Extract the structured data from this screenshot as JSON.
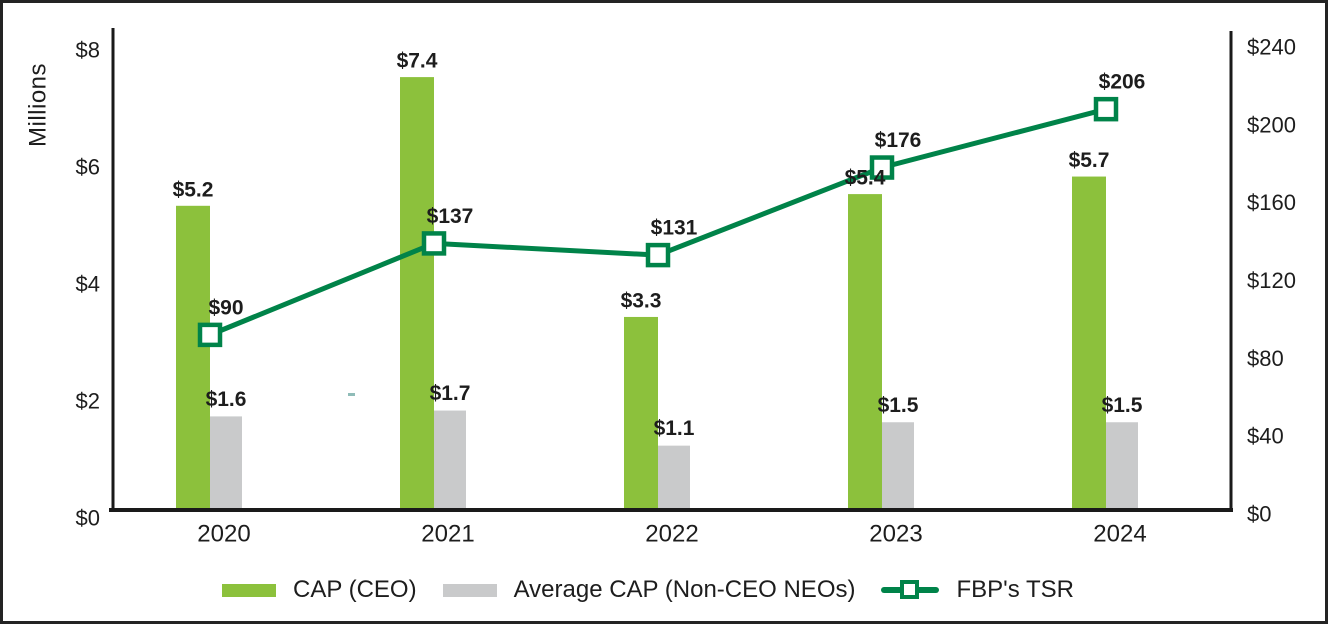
{
  "chart_data": {
    "type": "combo-bar-line",
    "categories": [
      "2020",
      "2021",
      "2022",
      "2023",
      "2024"
    ],
    "series": [
      {
        "name": "CAP (CEO)",
        "type": "bar",
        "axis": "left",
        "color": "#8CC13C",
        "values": [
          5.2,
          7.4,
          3.3,
          5.4,
          5.7
        ],
        "labels": [
          "$5.2",
          "$7.4",
          "$3.3",
          "$5.4",
          "$5.7"
        ]
      },
      {
        "name": "Average CAP (Non-CEO NEOs)",
        "type": "bar",
        "axis": "left",
        "color": "#C9CACB",
        "values": [
          1.6,
          1.7,
          1.1,
          1.5,
          1.5
        ],
        "labels": [
          "$1.6",
          "$1.7",
          "$1.1",
          "$1.5",
          "$1.5"
        ]
      },
      {
        "name": "FBP's TSR",
        "type": "line",
        "axis": "right",
        "color": "#008349",
        "marker": "open-square",
        "values": [
          90,
          137,
          131,
          176,
          206
        ],
        "labels": [
          "$90",
          "$137",
          "$131",
          "$176",
          "$206"
        ]
      }
    ],
    "left_axis": {
      "title": "Millions",
      "min": 0,
      "max": 8,
      "ticks": [
        "$0",
        "$2",
        "$4",
        "$6",
        "$8"
      ],
      "tick_values": [
        0,
        2,
        4,
        6,
        8
      ]
    },
    "right_axis": {
      "min": 0,
      "max": 240,
      "ticks": [
        "$0",
        "$40",
        "$80",
        "$120",
        "$160",
        "$200",
        "$240"
      ],
      "tick_values": [
        0,
        40,
        80,
        120,
        160,
        200,
        240
      ]
    },
    "legend": [
      {
        "label": "CAP (CEO)",
        "swatch": "bar",
        "color": "#8CC13C"
      },
      {
        "label": "Average CAP (Non-CEO NEOs)",
        "swatch": "bar",
        "color": "#C9CACB"
      },
      {
        "label": "FBP's TSR",
        "swatch": "line-marker",
        "color": "#008349"
      }
    ],
    "gridlines": false,
    "legend_position": "bottom",
    "axis_color": "#1a1a1a",
    "text_color": "#1d1d1d"
  }
}
